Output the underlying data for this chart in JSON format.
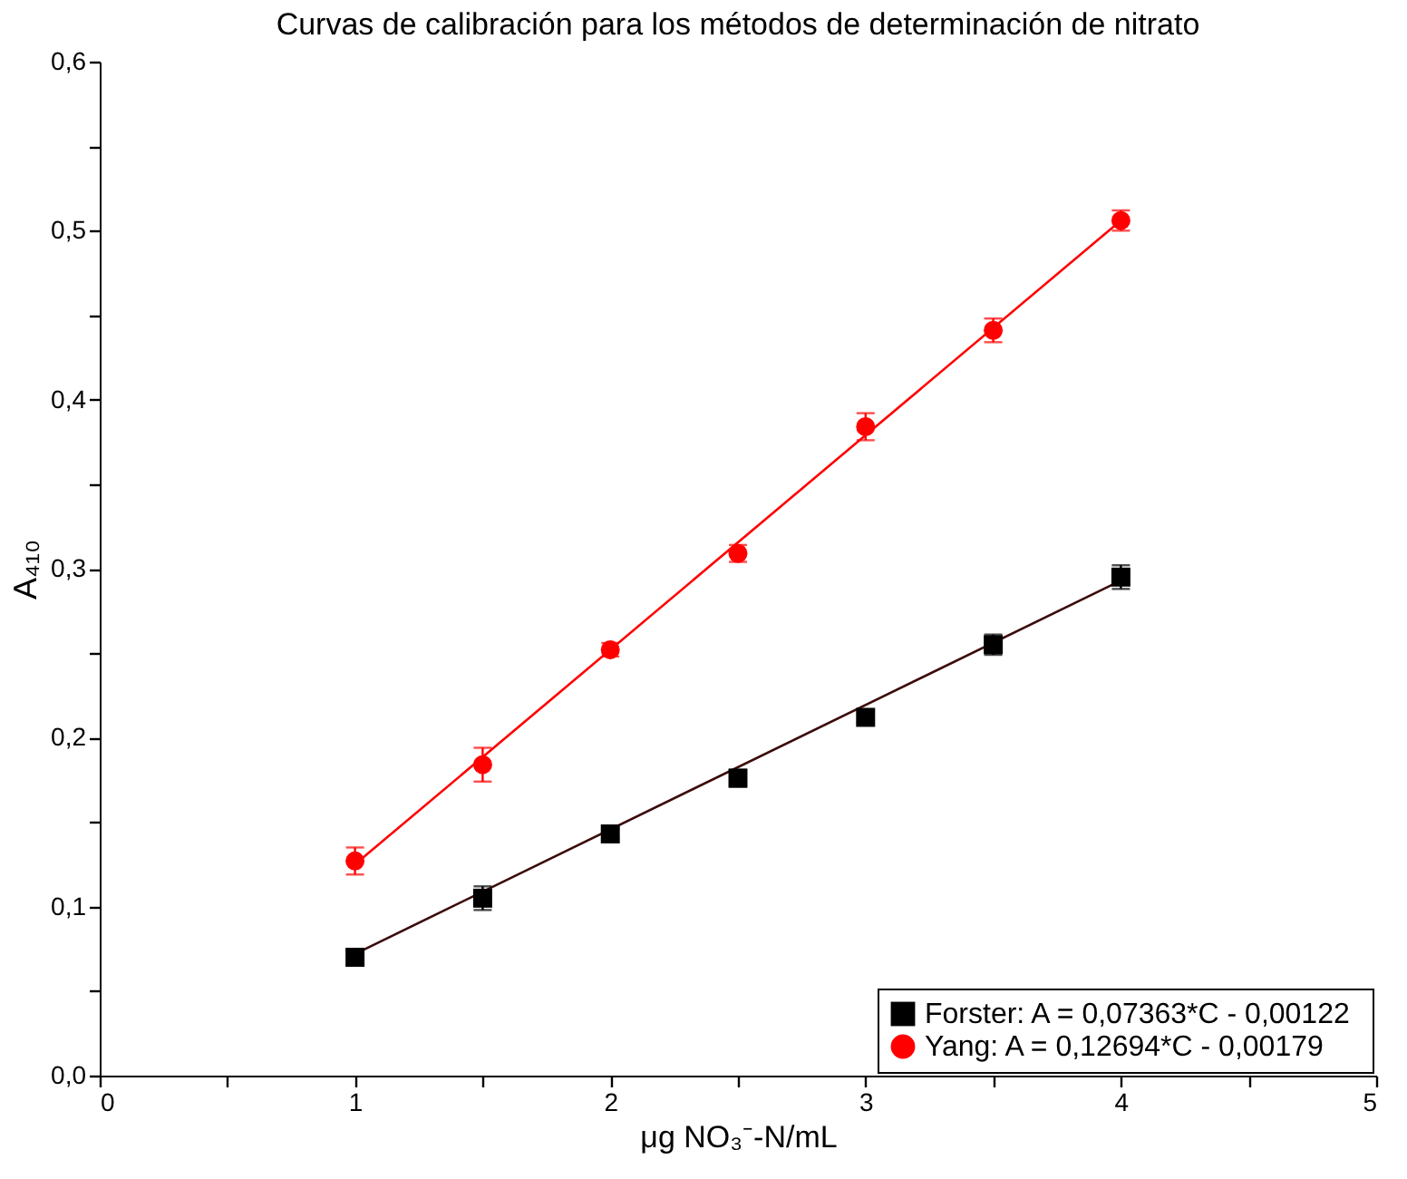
{
  "chart_data": {
    "type": "scatter",
    "title": "Curvas de calibración para los métodos de determinación de nitrato",
    "xlabel": "μg NO₃⁻-N/mL",
    "ylabel": "A₄₁₀",
    "xlim": [
      0,
      5
    ],
    "ylim": [
      0,
      0.6
    ],
    "xticks": [
      0,
      {
        "value": 0.5,
        "label": null
      },
      1,
      {
        "value": 1.5,
        "label": null
      },
      2,
      {
        "value": 2.5,
        "label": null
      },
      3,
      {
        "value": 3.5,
        "label": null
      },
      4,
      {
        "value": 4.5,
        "label": null
      },
      5
    ],
    "yticks": [
      {
        "value": 0,
        "label": "0,0"
      },
      {
        "value": 0.05,
        "label": null
      },
      {
        "value": 0.1,
        "label": "0,1"
      },
      {
        "value": 0.15,
        "label": null
      },
      {
        "value": 0.2,
        "label": "0,2"
      },
      {
        "value": 0.25,
        "label": null
      },
      {
        "value": 0.3,
        "label": "0,3"
      },
      {
        "value": 0.35,
        "label": null
      },
      {
        "value": 0.4,
        "label": "0,4"
      },
      {
        "value": 0.45,
        "label": null
      },
      {
        "value": 0.5,
        "label": "0,5"
      },
      {
        "value": 0.55,
        "label": null
      },
      {
        "value": 0.6,
        "label": "0,6"
      }
    ],
    "grid": false,
    "legend": "bottom right",
    "series": [
      {
        "type": "line",
        "color": "#3c0a0a",
        "x": [
          1,
          4
        ],
        "values": [
          0.072,
          0.293
        ],
        "marker": "none",
        "line_style": "solid"
      },
      {
        "type": "line",
        "color": "#ff0000",
        "x": [
          1,
          4
        ],
        "values": [
          0.125,
          0.506
        ],
        "marker": "none",
        "line_style": "solid"
      },
      {
        "name": "Forster:  A = 0,07363*C - 0,00122",
        "color": "#000000",
        "marker": "square",
        "x": [
          1,
          1.5,
          2,
          2.5,
          3,
          3.5,
          4
        ],
        "values": [
          0.07,
          0.105,
          0.143,
          0.176,
          0.212,
          0.255,
          0.295
        ],
        "errors": [
          0.004,
          0.007,
          0.003,
          0.005,
          0.003,
          0.006,
          0.007
        ]
      },
      {
        "name": "Yang:     A = 0,12694*C - 0,00179",
        "color": "#ff0000",
        "marker": "circle",
        "x": [
          1,
          1.5,
          2,
          2.5,
          3,
          3.5,
          4
        ],
        "values": [
          0.127,
          0.184,
          0.252,
          0.309,
          0.384,
          0.441,
          0.506
        ],
        "errors": [
          0.008,
          0.01,
          0.004,
          0.005,
          0.008,
          0.007,
          0.006
        ]
      }
    ]
  }
}
